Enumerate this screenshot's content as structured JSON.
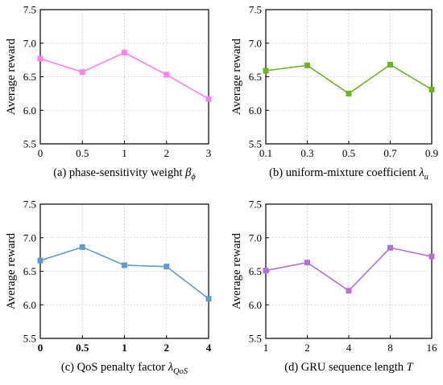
{
  "chart_data": [
    {
      "type": "line",
      "caption": "(a)  phase-sensitivity weight",
      "caption_symbol": "β",
      "caption_sub": "ϕ",
      "ylabel": "Average reward",
      "categories": [
        "0",
        "0.5",
        "1",
        "2",
        "3"
      ],
      "series": [
        {
          "values": [
            6.77,
            6.57,
            6.86,
            6.53,
            6.17
          ],
          "color": "#ff80ee"
        }
      ],
      "ylim": [
        5.5,
        7.5
      ],
      "yticks": [
        "5.5",
        "6.0",
        "6.5",
        "7.0",
        "7.5"
      ],
      "grid": true,
      "bold_xticks": false
    },
    {
      "type": "line",
      "caption": "(b) uniform-mixture coefficient",
      "caption_symbol": "λ",
      "caption_sub": "u",
      "ylabel": "Average reward",
      "categories": [
        "0.1",
        "0.3",
        "0.5",
        "0.7",
        "0.9"
      ],
      "series": [
        {
          "values": [
            6.59,
            6.67,
            6.25,
            6.68,
            6.31
          ],
          "color": "#6ab820"
        }
      ],
      "ylim": [
        5.5,
        7.5
      ],
      "yticks": [
        "5.5",
        "6.0",
        "6.5",
        "7.0",
        "7.5"
      ],
      "grid": true,
      "bold_xticks": false
    },
    {
      "type": "line",
      "caption": "(c) QoS penalty factor",
      "caption_symbol": "λ",
      "caption_sub": "QoS",
      "ylabel": "Average reward",
      "categories": [
        "0",
        "0.5",
        "1",
        "2",
        "4"
      ],
      "series": [
        {
          "values": [
            6.66,
            6.86,
            6.59,
            6.57,
            6.09
          ],
          "color": "#5f9ccb"
        }
      ],
      "ylim": [
        5.5,
        7.5
      ],
      "yticks": [
        "5.5",
        "6.0",
        "6.5",
        "7.0",
        "7.5"
      ],
      "grid": true,
      "bold_xticks": true
    },
    {
      "type": "line",
      "caption": "(d) GRU sequence length",
      "caption_symbol": "T",
      "caption_sub": "",
      "ylabel": "Average reward",
      "categories": [
        "1",
        "2",
        "4",
        "8",
        "16"
      ],
      "series": [
        {
          "values": [
            6.51,
            6.63,
            6.21,
            6.85,
            6.72
          ],
          "color": "#b86ed8"
        }
      ],
      "ylim": [
        5.5,
        7.5
      ],
      "yticks": [
        "5.5",
        "6.0",
        "6.5",
        "7.0",
        "7.5"
      ],
      "grid": true,
      "bold_xticks": false
    }
  ]
}
